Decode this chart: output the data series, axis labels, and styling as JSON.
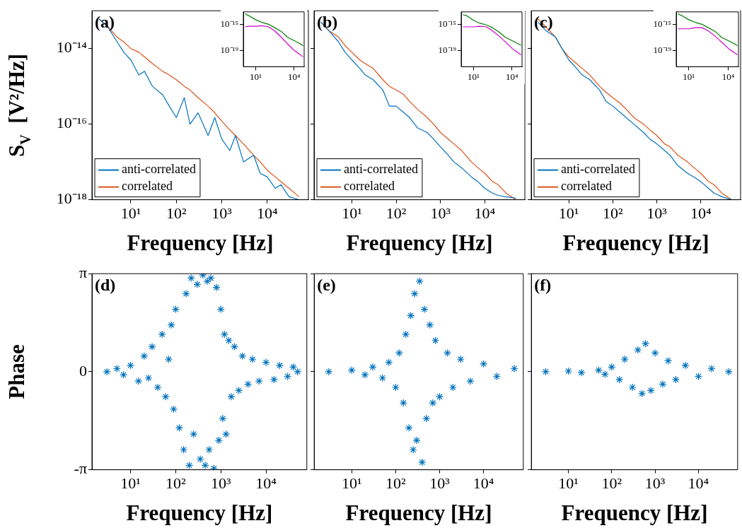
{
  "chart_data": [
    {
      "type": "line",
      "title": "(a)",
      "xlabel": "Frequency [Hz]",
      "ylabel": "S$_{V}$  [V²/Hz]",
      "log": "xy",
      "legend": "bottom left",
      "xlim": [
        1.4,
        80000
      ],
      "ylim": [
        1e-18,
        1e-13
      ],
      "xticks": [
        {
          "value": 10,
          "label": "10¹"
        },
        {
          "value": 100,
          "label": "10²"
        },
        {
          "value": 1000,
          "label": "10³"
        },
        {
          "value": 10000,
          "label": "10⁴"
        }
      ],
      "yticks": [
        {
          "value": 1e-18,
          "label": "10⁻¹⁸"
        },
        {
          "value": 1e-16,
          "label": "10⁻¹⁶"
        },
        {
          "value": 1e-14,
          "label": "10⁻¹⁴"
        }
      ],
      "series": [
        {
          "name": "anti-correlated",
          "color": "#0072bd",
          "x": [
            2,
            3,
            5,
            7,
            10,
            15,
            20,
            30,
            50,
            70,
            100,
            150,
            200,
            300,
            500,
            700,
            1000,
            1500,
            2000,
            3000,
            5000,
            7000,
            10000,
            15000,
            20000,
            30000,
            50000
          ],
          "values": [
            6e-14,
            4e-14,
            1.5e-14,
            8e-15,
            5e-15,
            2e-15,
            2.5e-15,
            1e-15,
            6e-16,
            3e-16,
            1.5e-16,
            5e-16,
            1e-16,
            2e-16,
            5e-17,
            1.5e-16,
            4e-17,
            2e-17,
            5e-17,
            1e-17,
            1.5e-17,
            5e-18,
            4e-18,
            2e-18,
            2.5e-18,
            1.2e-18,
            1e-18
          ]
        },
        {
          "name": "correlated",
          "color": "#d95319",
          "x": [
            2,
            3,
            5,
            7,
            10,
            15,
            20,
            30,
            50,
            70,
            100,
            150,
            200,
            300,
            500,
            700,
            1000,
            1500,
            2000,
            3000,
            5000,
            7000,
            10000,
            15000,
            20000,
            30000,
            50000
          ],
          "values": [
            6e-14,
            4e-14,
            2e-14,
            1.5e-14,
            1e-14,
            8e-15,
            6e-15,
            4e-15,
            2.5e-15,
            2e-15,
            1.5e-15,
            1e-15,
            8e-16,
            5e-16,
            3e-16,
            2e-16,
            1.2e-16,
            7e-17,
            5e-17,
            3e-17,
            1.5e-17,
            1e-17,
            6e-18,
            4e-18,
            3e-18,
            2e-18,
            1.2e-18
          ]
        }
      ]
    },
    {
      "type": "line",
      "log": "xy",
      "xlim": [
        1.1,
        60000
      ],
      "ylim": [
        3e-22,
        8e-14
      ],
      "xticks": [
        {
          "value": 10,
          "label": "10¹"
        },
        {
          "value": 10000,
          "label": "10⁴"
        }
      ],
      "yticks": [
        {
          "value": 1e-19,
          "label": "10⁻¹⁹"
        },
        {
          "value": 1e-15,
          "label": "10⁻¹⁵"
        }
      ],
      "series": [
        {
          "color": "#008000",
          "x": [
            1.5,
            3,
            10,
            30,
            100,
            300,
            1000,
            3000,
            10000,
            30000,
            50000
          ],
          "values": [
            4e-14,
            2e-14,
            5e-15,
            2e-15,
            1e-15,
            3e-16,
            8e-17,
            1e-17,
            3e-18,
            1e-18,
            5e-19
          ]
        },
        {
          "color": "#cc00cc",
          "x": [
            1.5,
            3,
            10,
            30,
            100,
            300,
            1000,
            3000,
            10000,
            30000,
            50000
          ],
          "values": [
            4e-16,
            5e-16,
            5e-16,
            6e-16,
            4e-16,
            1e-16,
            1e-17,
            1e-18,
            1e-19,
            2e-20,
            1e-20
          ]
        }
      ]
    },
    {
      "type": "line",
      "title": "(b)",
      "xlabel": "Frequency [Hz]",
      "log": "xy",
      "legend": "bottom left",
      "tick_labels": "x",
      "xlim": [
        1.4,
        80000
      ],
      "ylim": [
        1e-18,
        1e-13
      ],
      "xticks": [
        {
          "value": 10,
          "label": "10¹"
        },
        {
          "value": 100,
          "label": "10²"
        },
        {
          "value": 1000,
          "label": "10³"
        },
        {
          "value": 10000,
          "label": "10⁴"
        }
      ],
      "yticks": [
        {
          "value": 1e-18,
          "label": null
        },
        {
          "value": 1e-16,
          "label": null
        },
        {
          "value": 1e-14,
          "label": null
        }
      ],
      "series": [
        {
          "name": "anti-correlated",
          "color": "#0072bd",
          "x": [
            2,
            3,
            5,
            7,
            10,
            15,
            20,
            30,
            50,
            70,
            100,
            150,
            200,
            300,
            500,
            700,
            1000,
            1500,
            2000,
            3000,
            5000,
            7000,
            10000,
            15000,
            20000,
            30000,
            50000
          ],
          "values": [
            5e-14,
            3e-14,
            1.5e-14,
            8e-15,
            5e-15,
            3e-15,
            2e-15,
            1.5e-15,
            8e-16,
            3e-16,
            3e-16,
            2e-16,
            1.5e-16,
            8e-17,
            6e-17,
            4e-17,
            2.5e-17,
            1.5e-17,
            1e-17,
            7e-18,
            4e-18,
            3e-18,
            2e-18,
            1.5e-18,
            1.3e-18,
            1.2e-18,
            1.1e-18
          ]
        },
        {
          "name": "correlated",
          "color": "#d95319",
          "x": [
            2,
            3,
            5,
            7,
            10,
            15,
            20,
            30,
            50,
            70,
            100,
            150,
            200,
            300,
            500,
            700,
            1000,
            1500,
            2000,
            3000,
            5000,
            7000,
            10000,
            15000,
            20000,
            30000,
            50000
          ],
          "values": [
            5e-14,
            3e-14,
            2e-14,
            1.2e-14,
            8e-15,
            5e-15,
            4e-15,
            3e-15,
            1.5e-15,
            1e-15,
            8e-16,
            6e-16,
            4e-16,
            2.5e-16,
            1.5e-16,
            1e-16,
            6e-17,
            4e-17,
            3e-17,
            2e-17,
            1e-17,
            7e-18,
            5e-18,
            3e-18,
            2.5e-18,
            1.5e-18,
            1e-18
          ]
        }
      ]
    },
    {
      "type": "line",
      "log": "xy",
      "xlim": [
        1.1,
        60000
      ],
      "ylim": [
        3e-22,
        8e-14
      ],
      "xticks": [
        {
          "value": 10,
          "label": "10¹"
        },
        {
          "value": 10000,
          "label": "10⁴"
        }
      ],
      "yticks": [
        {
          "value": 1e-19,
          "label": "10⁻¹⁹"
        },
        {
          "value": 1e-15,
          "label": "10⁻¹⁵"
        }
      ],
      "series": [
        {
          "color": "#008000",
          "x": [
            1.5,
            3,
            10,
            30,
            100,
            300,
            1000,
            3000,
            10000,
            30000,
            50000
          ],
          "values": [
            3e-14,
            2e-14,
            4e-15,
            1.5e-15,
            8e-16,
            3e-16,
            6e-17,
            1e-17,
            3e-18,
            1e-18,
            6e-19
          ]
        },
        {
          "color": "#cc00cc",
          "x": [
            1.5,
            3,
            10,
            30,
            100,
            300,
            1000,
            3000,
            10000,
            30000,
            50000
          ],
          "values": [
            4e-16,
            4e-16,
            4e-16,
            5e-16,
            4e-16,
            1e-16,
            1.5e-17,
            2e-18,
            2e-19,
            4e-20,
            2e-20
          ]
        }
      ]
    },
    {
      "type": "line",
      "title": "(c)",
      "xlabel": "Frequency [Hz]",
      "log": "xy",
      "legend": "bottom left",
      "tick_labels": "x",
      "xlim": [
        1.4,
        80000
      ],
      "ylim": [
        1e-18,
        1e-13
      ],
      "xticks": [
        {
          "value": 10,
          "label": "10¹"
        },
        {
          "value": 100,
          "label": "10²"
        },
        {
          "value": 1000,
          "label": "10³"
        },
        {
          "value": 10000,
          "label": "10⁴"
        }
      ],
      "yticks": [
        {
          "value": 1e-18,
          "label": null
        },
        {
          "value": 1e-16,
          "label": null
        },
        {
          "value": 1e-14,
          "label": null
        }
      ],
      "series": [
        {
          "name": "anti-correlated",
          "color": "#0072bd",
          "x": [
            2,
            3,
            5,
            7,
            10,
            15,
            20,
            30,
            50,
            70,
            100,
            150,
            200,
            300,
            500,
            700,
            1000,
            1500,
            2000,
            3000,
            5000,
            7000,
            10000,
            15000,
            20000,
            30000,
            50000
          ],
          "values": [
            5e-14,
            3e-14,
            2e-14,
            1e-14,
            5e-15,
            3e-15,
            2e-15,
            1.5e-15,
            8e-16,
            4e-16,
            3e-16,
            2e-16,
            1.5e-16,
            1e-16,
            6e-17,
            4e-17,
            3e-17,
            2e-17,
            1.5e-17,
            8e-18,
            5e-18,
            4e-18,
            3e-18,
            2e-18,
            1.5e-18,
            1.2e-18,
            1e-18
          ]
        },
        {
          "name": "correlated",
          "color": "#d95319",
          "x": [
            2,
            3,
            5,
            7,
            10,
            15,
            20,
            30,
            50,
            70,
            100,
            150,
            200,
            300,
            500,
            700,
            1000,
            1500,
            2000,
            3000,
            5000,
            7000,
            10000,
            15000,
            20000,
            30000,
            50000
          ],
          "values": [
            6e-14,
            3.8e-14,
            2e-14,
            1e-14,
            6e-15,
            4e-15,
            3e-15,
            2e-15,
            1e-15,
            7e-16,
            5e-16,
            3.5e-16,
            2.5e-16,
            1.5e-16,
            1e-16,
            7e-17,
            5e-17,
            3e-17,
            2.5e-17,
            1.5e-17,
            1e-17,
            7e-18,
            5e-18,
            3e-18,
            2.5e-18,
            1.5e-18,
            1e-18
          ]
        }
      ]
    },
    {
      "type": "line",
      "log": "xy",
      "xlim": [
        1.1,
        60000
      ],
      "ylim": [
        3e-22,
        8e-14
      ],
      "xticks": [
        {
          "value": 10,
          "label": "10¹"
        },
        {
          "value": 10000,
          "label": "10⁴"
        }
      ],
      "yticks": [
        {
          "value": 1e-19,
          "label": "10⁻¹⁹"
        },
        {
          "value": 1e-15,
          "label": "10⁻¹⁵"
        }
      ],
      "series": [
        {
          "color": "#008000",
          "x": [
            1.5,
            3,
            10,
            30,
            100,
            300,
            1000,
            3000,
            10000,
            30000,
            50000
          ],
          "values": [
            4e-14,
            2e-14,
            5e-15,
            2e-15,
            1e-15,
            3e-16,
            8e-17,
            1e-17,
            3e-18,
            1e-18,
            5e-19
          ]
        },
        {
          "color": "#cc00cc",
          "x": [
            1.5,
            3,
            10,
            30,
            100,
            300,
            1000,
            3000,
            10000,
            30000,
            50000
          ],
          "values": [
            2e-16,
            2e-16,
            2e-16,
            3e-16,
            3e-16,
            1e-16,
            1.5e-17,
            2e-18,
            2e-19,
            4e-20,
            2e-20
          ]
        }
      ]
    },
    {
      "type": "scatter",
      "title": "(d)",
      "xlabel": "Frequency [Hz]",
      "ylabel": "Phase",
      "log": "x",
      "marker": "cross",
      "xlim": [
        1.4,
        80000
      ],
      "ylim": [
        -3.1416,
        3.1416
      ],
      "xticks": [
        {
          "value": 10,
          "label": "10¹"
        },
        {
          "value": 100,
          "label": "10²"
        },
        {
          "value": 1000,
          "label": "10³"
        },
        {
          "value": 10000,
          "label": "10⁴"
        }
      ],
      "yticks": [
        {
          "value": -3.1416,
          "label": "-π"
        },
        {
          "value": 0,
          "label": "0"
        },
        {
          "value": 3.1416,
          "label": "π"
        }
      ],
      "series": [
        {
          "color": "#0072bd",
          "x": [
            3,
            5,
            7,
            10,
            15,
            20,
            25,
            30,
            40,
            50,
            60,
            70,
            80,
            90,
            100,
            120,
            150,
            170,
            200,
            220,
            250,
            300,
            350,
            400,
            450,
            500,
            550,
            600,
            700,
            800,
            900,
            1000,
            1100,
            1200,
            1300,
            1500,
            1700,
            2000,
            2500,
            3000,
            4000,
            5000,
            7000,
            10000,
            15000,
            20000,
            30000,
            40000,
            50000
          ],
          "values": [
            0,
            0.1,
            -0.1,
            0.2,
            -0.3,
            0.5,
            -0.2,
            0.8,
            -0.5,
            1.2,
            -0.8,
            0.4,
            1.5,
            -1.2,
            2,
            -1.8,
            -2.5,
            2.5,
            -3,
            3,
            -2,
            2.8,
            -2.8,
            3.1,
            -3,
            2.9,
            -2.5,
            3,
            -3.1,
            2.7,
            -2.2,
            2,
            -1.5,
            1.2,
            -2,
            1,
            -0.8,
            0.8,
            -0.6,
            0.5,
            -0.4,
            0.4,
            -0.3,
            0.3,
            -0.25,
            0.2,
            -0.15,
            0.15,
            0
          ]
        }
      ]
    },
    {
      "type": "scatter",
      "title": "(e)",
      "xlabel": "Frequency [Hz]",
      "log": "x",
      "marker": "cross",
      "tick_labels": "x",
      "xlim": [
        1.4,
        80000
      ],
      "ylim": [
        -3.1416,
        3.1416
      ],
      "xticks": [
        {
          "value": 10,
          "label": "10¹"
        },
        {
          "value": 100,
          "label": "10²"
        },
        {
          "value": 1000,
          "label": "10³"
        },
        {
          "value": 10000,
          "label": "10⁴"
        }
      ],
      "yticks": [
        {
          "value": -3.1416,
          "label": null
        },
        {
          "value": 0,
          "label": null
        },
        {
          "value": 3.1416,
          "label": null
        }
      ],
      "series": [
        {
          "color": "#0072bd",
          "x": [
            3,
            10,
            20,
            30,
            50,
            70,
            100,
            120,
            150,
            170,
            200,
            220,
            250,
            270,
            300,
            350,
            400,
            450,
            500,
            600,
            700,
            800,
            1000,
            1500,
            2000,
            3000,
            5000,
            10000,
            20000,
            50000
          ],
          "values": [
            0,
            0.05,
            -0.1,
            0.15,
            -0.2,
            0.3,
            -0.5,
            0.6,
            -1,
            1.2,
            -1.8,
            1.8,
            -2.5,
            2.5,
            -2.2,
            2.9,
            -2.9,
            2,
            -1.5,
            1.5,
            -1,
            1,
            -0.8,
            0.6,
            -0.5,
            0.4,
            -0.3,
            0.25,
            -0.15,
            0.1
          ]
        }
      ]
    },
    {
      "type": "scatter",
      "title": "(f)",
      "xlabel": "Frequency [Hz]",
      "log": "x",
      "marker": "cross",
      "tick_labels": "x",
      "xlim": [
        1.4,
        80000
      ],
      "ylim": [
        -3.1416,
        3.1416
      ],
      "xticks": [
        {
          "value": 10,
          "label": "10¹"
        },
        {
          "value": 100,
          "label": "10²"
        },
        {
          "value": 1000,
          "label": "10³"
        },
        {
          "value": 10000,
          "label": "10⁴"
        }
      ],
      "yticks": [
        {
          "value": -3.1416,
          "label": null
        },
        {
          "value": 0,
          "label": null
        },
        {
          "value": 3.1416,
          "label": null
        }
      ],
      "series": [
        {
          "color": "#0072bd",
          "x": [
            3,
            10,
            20,
            50,
            70,
            100,
            150,
            200,
            300,
            400,
            500,
            600,
            800,
            1000,
            1500,
            2000,
            3000,
            5000,
            10000,
            20000,
            50000
          ],
          "values": [
            0,
            0.02,
            -0.03,
            0.05,
            -0.08,
            0.15,
            -0.25,
            0.4,
            -0.5,
            0.7,
            -0.7,
            0.9,
            -0.6,
            0.6,
            -0.4,
            0.35,
            -0.25,
            0.2,
            -0.15,
            0.1,
            0
          ]
        }
      ]
    }
  ]
}
